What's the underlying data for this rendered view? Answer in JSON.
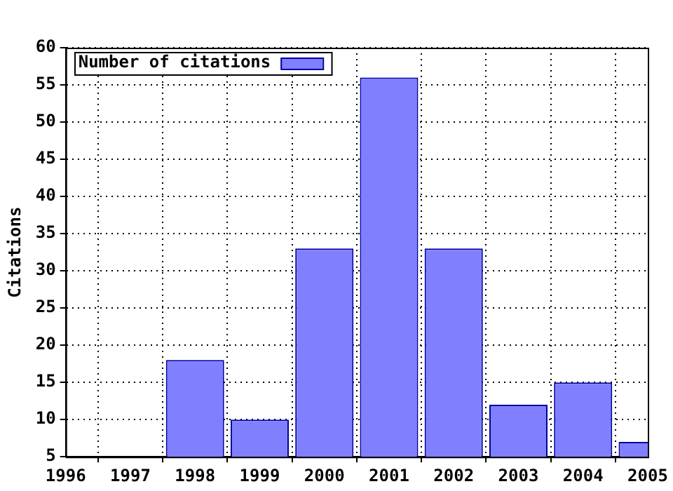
{
  "chart_data": {
    "type": "bar",
    "ylabel": "Citations",
    "x": [
      1998,
      1999,
      2000,
      2001,
      2002,
      2003,
      2004,
      2005
    ],
    "series": [
      {
        "name": "Number of citations",
        "color": "#8080ff",
        "values": [
          18,
          10,
          33,
          56,
          33,
          12,
          15,
          7
        ]
      }
    ],
    "xlim": [
      1996,
      2005
    ],
    "xticks": [
      1996,
      1997,
      1998,
      1999,
      2000,
      2001,
      2002,
      2003,
      2004,
      2005
    ],
    "ylim": [
      5,
      60
    ],
    "yticks": [
      5,
      10,
      15,
      20,
      25,
      30,
      35,
      40,
      45,
      50,
      55,
      60
    ],
    "grid": true,
    "legend": "top left"
  }
}
